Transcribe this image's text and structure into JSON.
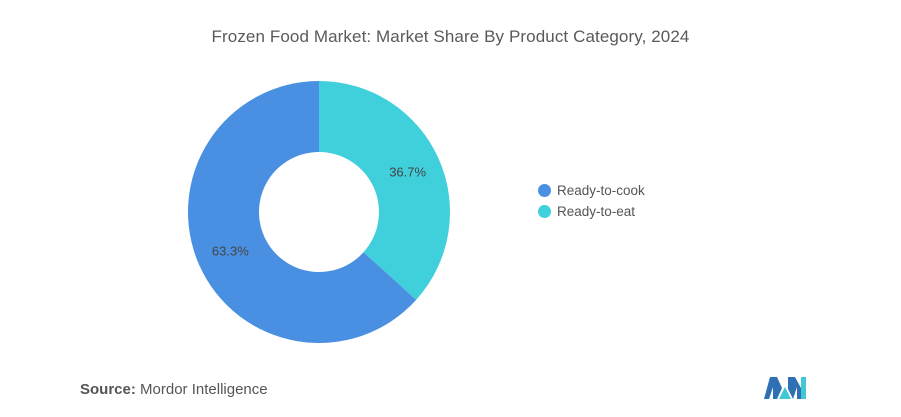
{
  "title": "Frozen Food Market: Market Share By Product Category, 2024",
  "source": {
    "label": "Source:",
    "value": "Mordor Intelligence"
  },
  "logo": {
    "icon": "mordor-intelligence-logo",
    "colors": [
      "#2f6fb3",
      "#3fc7d6"
    ]
  },
  "chart_data": {
    "type": "pie",
    "variant": "donut",
    "title": "Frozen Food Market: Market Share By Product Category, 2024",
    "unit": "%",
    "legend_position": "right",
    "slices": [
      {
        "label": "Ready-to-cook",
        "value": 63.3,
        "display": "63.3%",
        "color": "#4a90e2"
      },
      {
        "label": "Ready-to-eat",
        "value": 36.7,
        "display": "36.7%",
        "color": "#40d0dc"
      }
    ]
  }
}
